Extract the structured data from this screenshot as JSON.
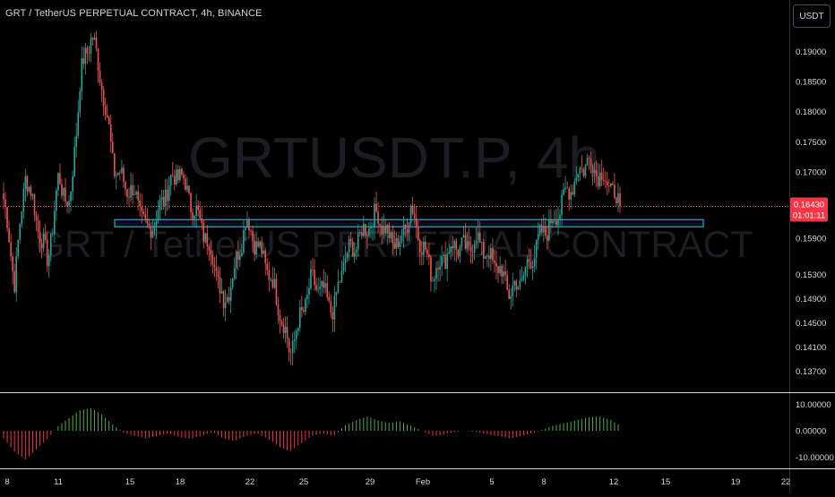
{
  "header": {
    "title": "GRT / TetherUS PERPETUAL CONTRACT, 4h, BINANCE",
    "currency_button": "USDT"
  },
  "watermark": {
    "symbol": "GRTUSDT.P, 4h",
    "description": "GRT / TetherUS PERPETUAL CONTRACT"
  },
  "price_badge": {
    "price": "0.16430",
    "countdown": "01:01:11",
    "color": "#f23645"
  },
  "colors": {
    "up": "#26a69a",
    "down": "#ef5350",
    "zone": "#00bcd4",
    "osc_up": "#4caf50",
    "osc_down": "#f23645",
    "background": "#000000"
  },
  "chart_data": [
    {
      "type": "candlestick",
      "symbol": "GRTUSDT.P",
      "timeframe": "4h",
      "exchange": "BINANCE",
      "x_ticks": [
        "8",
        "11",
        "15",
        "18",
        "22",
        "25",
        "29",
        "Feb",
        "5",
        "8",
        "12",
        "15",
        "19",
        "22"
      ],
      "y_ticks": [
        "0.19000",
        "0.18500",
        "0.18000",
        "0.17500",
        "0.17000",
        "0.15900",
        "0.15300",
        "0.14900",
        "0.14500",
        "0.14100",
        "0.13700"
      ],
      "ylim": [
        0.1335,
        0.1985
      ],
      "last_price": 0.1643,
      "zone": {
        "low": 0.1612,
        "high": 0.1621
      },
      "path": [
        [
          0,
          0.1655
        ],
        [
          1,
          0.152
        ],
        [
          2,
          0.17
        ],
        [
          3,
          0.162
        ],
        [
          4,
          0.155
        ],
        [
          5,
          0.169
        ],
        [
          6,
          0.164
        ],
        [
          7,
          0.186
        ],
        [
          8,
          0.193
        ],
        [
          9,
          0.184
        ],
        [
          10,
          0.171
        ],
        [
          11,
          0.168
        ],
        [
          12,
          0.166
        ],
        [
          13,
          0.16
        ],
        [
          14,
          0.163
        ],
        [
          15,
          0.168
        ],
        [
          16,
          0.17
        ],
        [
          17,
          0.165
        ],
        [
          18,
          0.161
        ],
        [
          19,
          0.156
        ],
        [
          20,
          0.148
        ],
        [
          21,
          0.154
        ],
        [
          22,
          0.162
        ],
        [
          23,
          0.158
        ],
        [
          24,
          0.154
        ],
        [
          25,
          0.148
        ],
        [
          26,
          0.14
        ],
        [
          27,
          0.146
        ],
        [
          28,
          0.152
        ],
        [
          29,
          0.15
        ],
        [
          30,
          0.147
        ],
        [
          31,
          0.156
        ],
        [
          32,
          0.158
        ],
        [
          33,
          0.161
        ],
        [
          34,
          0.163
        ],
        [
          35,
          0.159
        ],
        [
          36,
          0.158
        ],
        [
          37,
          0.164
        ],
        [
          38,
          0.158
        ],
        [
          39,
          0.153
        ],
        [
          40,
          0.156
        ],
        [
          41,
          0.158
        ],
        [
          42,
          0.157
        ],
        [
          43,
          0.159
        ],
        [
          44,
          0.156
        ],
        [
          45,
          0.154
        ],
        [
          46,
          0.15
        ],
        [
          47,
          0.152
        ],
        [
          48,
          0.156
        ],
        [
          49,
          0.16
        ],
        [
          50,
          0.162
        ],
        [
          51,
          0.166
        ],
        [
          52,
          0.169
        ],
        [
          53,
          0.172
        ],
        [
          54,
          0.17
        ],
        [
          55,
          0.168
        ],
        [
          56,
          0.1643
        ]
      ],
      "oscillator": {
        "ylim": [
          -14,
          14
        ],
        "y_ticks": [
          "10.00000",
          "0.00000",
          "-10.00000"
        ],
        "y_tick_values": [
          10,
          0,
          -10
        ],
        "path": [
          [
            0,
            -3
          ],
          [
            1,
            -8
          ],
          [
            2,
            -11
          ],
          [
            3,
            -7
          ],
          [
            4,
            -3
          ],
          [
            5,
            2
          ],
          [
            6,
            5
          ],
          [
            7,
            8
          ],
          [
            8,
            8.5
          ],
          [
            9,
            6
          ],
          [
            10,
            2
          ],
          [
            11,
            -1
          ],
          [
            12,
            -2
          ],
          [
            13,
            -3
          ],
          [
            14,
            -2
          ],
          [
            15,
            -1
          ],
          [
            16,
            -2.5
          ],
          [
            17,
            -3
          ],
          [
            18,
            -2
          ],
          [
            19,
            -0.5
          ],
          [
            20,
            -3
          ],
          [
            21,
            -4
          ],
          [
            22,
            -2
          ],
          [
            23,
            -1
          ],
          [
            24,
            -3
          ],
          [
            25,
            -6
          ],
          [
            26,
            -8
          ],
          [
            27,
            -5
          ],
          [
            28,
            -2
          ],
          [
            29,
            -1
          ],
          [
            30,
            -2
          ],
          [
            31,
            2
          ],
          [
            32,
            4
          ],
          [
            33,
            5.5
          ],
          [
            34,
            4
          ],
          [
            35,
            3
          ],
          [
            36,
            3.5
          ],
          [
            37,
            2
          ],
          [
            38,
            0
          ],
          [
            39,
            -2
          ],
          [
            40,
            -1.5
          ],
          [
            41,
            -0.5
          ],
          [
            42,
            0
          ],
          [
            43,
            -0.5
          ],
          [
            44,
            -1.5
          ],
          [
            45,
            -2
          ],
          [
            46,
            -3
          ],
          [
            47,
            -2
          ],
          [
            48,
            -1
          ],
          [
            49,
            0.5
          ],
          [
            50,
            2
          ],
          [
            51,
            3
          ],
          [
            52,
            4
          ],
          [
            53,
            5
          ],
          [
            54,
            5.5
          ],
          [
            55,
            4.5
          ],
          [
            56,
            2
          ]
        ]
      }
    }
  ]
}
